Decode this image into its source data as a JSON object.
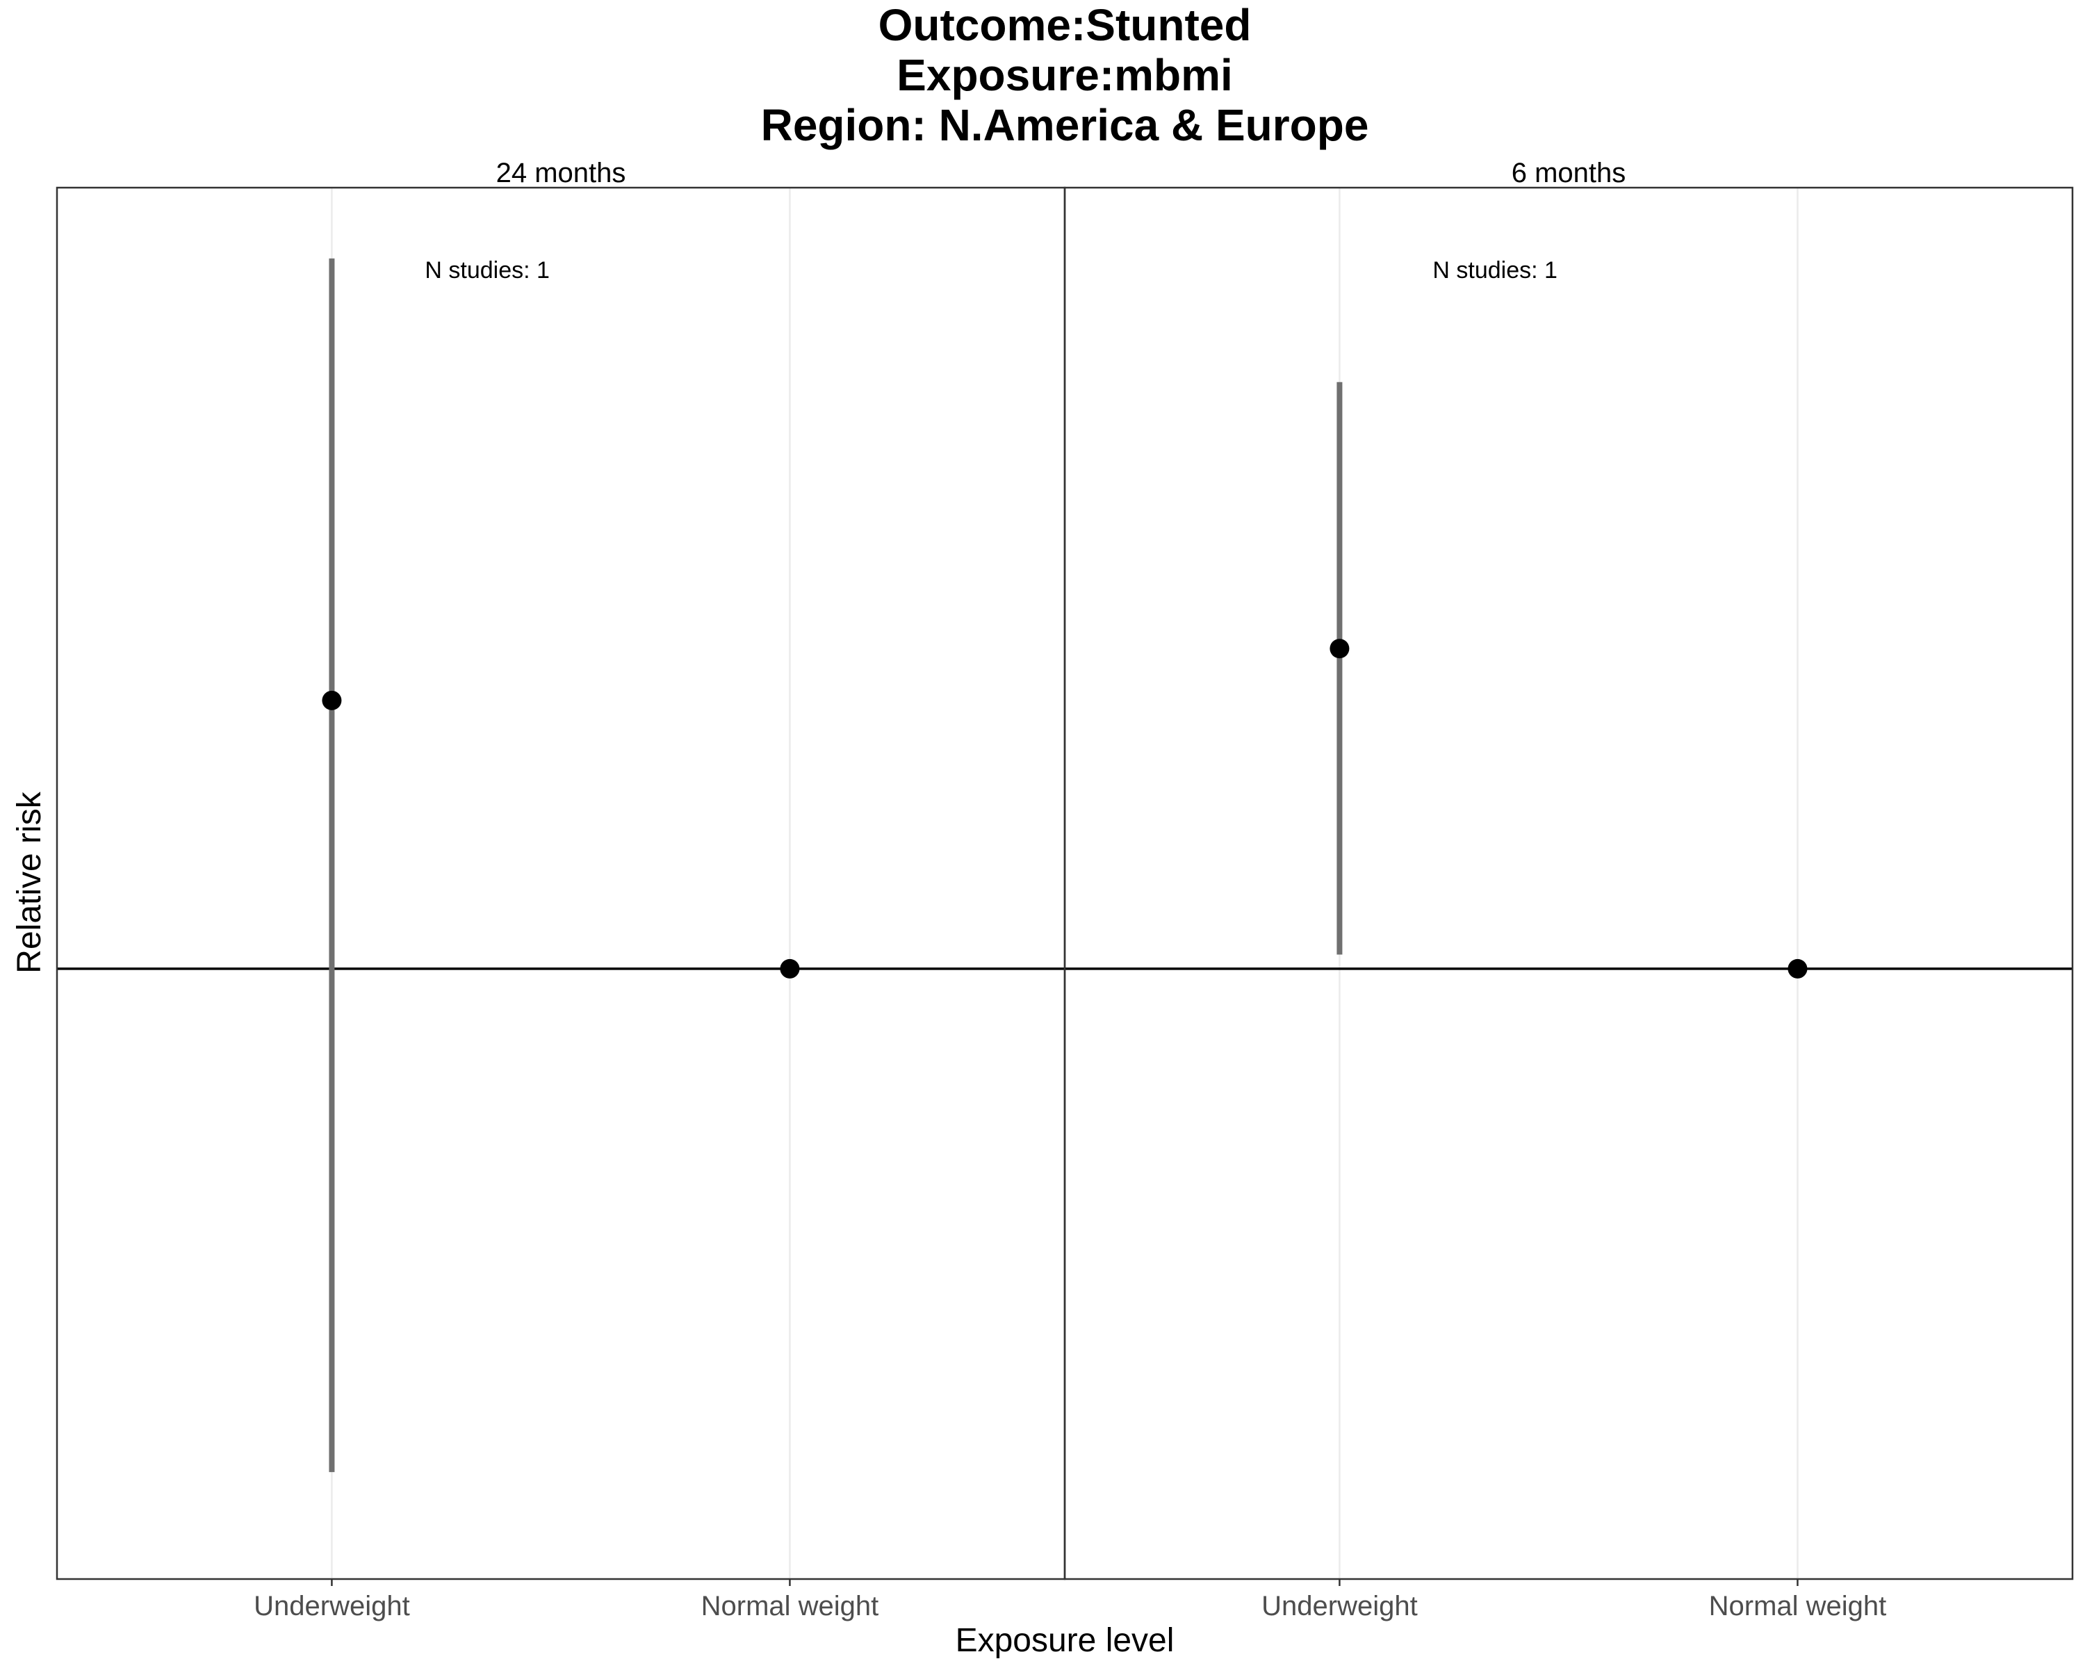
{
  "chart_data": {
    "type": "scatter",
    "title_lines": [
      "Outcome:Stunted",
      "Exposure:mbmi",
      "Region: N.America & Europe"
    ],
    "xlabel": "Exposure level",
    "ylabel": "Relative risk",
    "y_ticks_shown": false,
    "grid": "vertical",
    "reference_line": 1,
    "categories": [
      "Underweight",
      "Normal weight"
    ],
    "panels": [
      {
        "strip": "24 months",
        "annotation": "N studies: 1",
        "points": [
          {
            "x": "Underweight",
            "y": 1.75,
            "lower": 0.35,
            "upper": 4.4
          },
          {
            "x": "Normal weight",
            "y": 1.0,
            "lower": null,
            "upper": null
          }
        ]
      },
      {
        "strip": "6 months",
        "annotation": "N studies: 1",
        "points": [
          {
            "x": "Underweight",
            "y": 1.95,
            "lower": 1.03,
            "upper": 3.4
          },
          {
            "x": "Normal weight",
            "y": 1.0,
            "lower": null,
            "upper": null
          }
        ]
      }
    ],
    "ylim": [
      0.28,
      5.1
    ],
    "y_scale": "log",
    "colors": {
      "point": "#000000",
      "interval": "#707070",
      "grid": "#ebebeb",
      "border": "#333333"
    }
  }
}
